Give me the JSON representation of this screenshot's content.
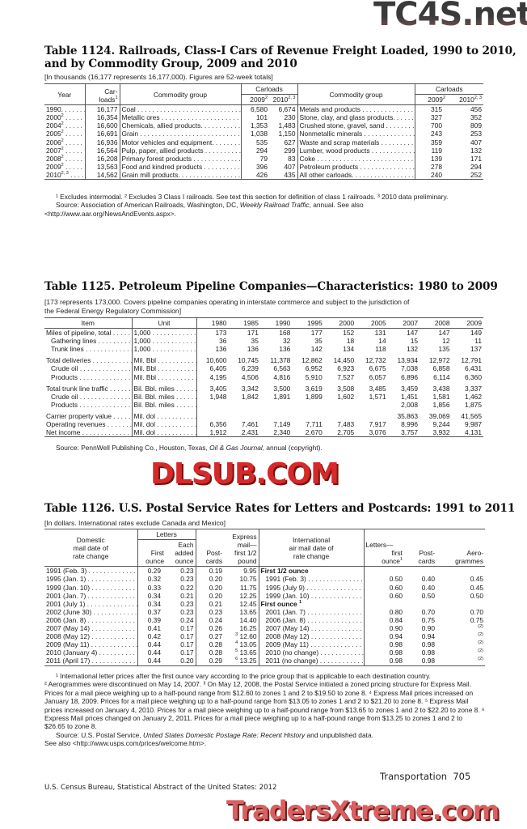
{
  "t1124": {
    "title_l1": "Table 1124. Railroads, Class-I Cars of Revenue Freight Loaded, 1990 to 2010,",
    "title_l2": "and by Commodity Group, 2009 and 2010",
    "subtitle": "[In thousands (16,177 represents 16,177,000). Figures are 52-week totals]",
    "headers": {
      "year": "Year",
      "carloads_a": "Car-",
      "carloads_b": "loads",
      "carloads_sup": "1",
      "commodity": "Commodity group",
      "carloads": "Carloads",
      "y2009": "2009",
      "y2009_sup": "2",
      "y2010": "2010",
      "y2010_sup": "2, 3"
    },
    "rows": [
      {
        "year": "1990.",
        "sup": "",
        "carloads": "16,177",
        "c1": "Coal",
        "a1": "6,580",
        "b1": "6,674",
        "c2": "Metals and products",
        "a2": "315",
        "b2": "456"
      },
      {
        "year": "2000",
        "sup": "2",
        "carloads": "16,354",
        "c1": "Metallic ores",
        "a1": "101",
        "b1": "230",
        "c2": "Stone, clay, and glass products.",
        "a2": "327",
        "b2": "352"
      },
      {
        "year": "2004",
        "sup": "2",
        "carloads": "16,600",
        "c1": "Chemicals, allied products.",
        "a1": "1,353",
        "b1": "1,483",
        "c2": "Crushed stone, gravel, sand",
        "a2": "700",
        "b2": "809"
      },
      {
        "year": "2005",
        "sup": "2",
        "carloads": "16,691",
        "c1": "Grain",
        "a1": "1,038",
        "b1": "1,150",
        "c2": "Nonmetallic minerals",
        "a2": "243",
        "b2": "253"
      },
      {
        "year": "2006",
        "sup": "2",
        "carloads": "16,936",
        "c1": "Motor vehicles and equipment.",
        "a1": "535",
        "b1": "627",
        "c2": "Waste and scrap materials",
        "a2": "359",
        "b2": "407"
      },
      {
        "year": "2007",
        "sup": "2",
        "carloads": "16,564",
        "c1": "Pulp, paper, allied products",
        "a1": "294",
        "b1": "299",
        "c2": "Lumber, wood products",
        "a2": "119",
        "b2": "132"
      },
      {
        "year": "2008",
        "sup": "2",
        "carloads": "16,208",
        "c1": "Primary forest products",
        "a1": "79",
        "b1": "83",
        "c2": "Coke",
        "a2": "139",
        "b2": "171"
      },
      {
        "year": "2009",
        "sup": "2",
        "carloads": "13,563",
        "c1": "Food and kindred products",
        "a1": "396",
        "b1": "407",
        "c2": "Petroleum products",
        "a2": "278",
        "b2": "294"
      },
      {
        "year": "2010",
        "sup": "2, 3",
        "carloads": "14,562",
        "c1": "Grain mill products.",
        "a1": "426",
        "b1": "435",
        "c2": "All other carloads.",
        "a2": "240",
        "b2": "252"
      }
    ],
    "footnote": "¹ Excludes intermodal. ² Excludes 3 Class I railroads. See text this section for definition of class 1 railroads. ³ 2010 data preliminary.",
    "source_pre": "Source: Association of American Railroads, Washington, DC, ",
    "source_ital": "Weekly Railroad Traffic",
    "source_post": ", annual. See also <http://www.aar.org/NewsAndEvents.aspx>."
  },
  "t1125": {
    "title": "Table 1125. Petroleum Pipeline Companies—Characteristics: 1980 to 2009",
    "subtitle_l1": "[173 represents 173,000. Covers pipeline companies operating in interstate commerce and subject to the jurisdiction of",
    "subtitle_l2": "the Federal Energy Regulatory Commission]",
    "headers": {
      "item": "Item",
      "unit": "Unit",
      "years": [
        "1980",
        "1985",
        "1990",
        "1995",
        "2000",
        "2005",
        "2007",
        "2008",
        "2009"
      ]
    },
    "rows": [
      {
        "item": "Miles of pipeline, total",
        "indent": false,
        "gap": false,
        "unit": "1,000",
        "v": [
          "173",
          "171",
          "168",
          "177",
          "152",
          "131",
          "147",
          "147",
          "149"
        ]
      },
      {
        "item": "Gathering lines",
        "indent": true,
        "gap": false,
        "unit": "1,000",
        "v": [
          "36",
          "35",
          "32",
          "35",
          "18",
          "14",
          "15",
          "12",
          "11"
        ]
      },
      {
        "item": "Trunk lines",
        "indent": true,
        "gap": false,
        "unit": "1,000",
        "v": [
          "136",
          "136",
          "136",
          "142",
          "134",
          "118",
          "132",
          "135",
          "137"
        ]
      },
      {
        "item": "Total deliveries",
        "indent": false,
        "gap": true,
        "unit": "Mil. Bbl",
        "v": [
          "10,600",
          "10,745",
          "11,378",
          "12,862",
          "14,450",
          "12,732",
          "13,934",
          "12,972",
          "12,791"
        ]
      },
      {
        "item": "Crude oil",
        "indent": true,
        "gap": false,
        "unit": "Mil. Bbl",
        "v": [
          "6,405",
          "6,239",
          "6,563",
          "6,952",
          "6,923",
          "6,675",
          "7,038",
          "6,858",
          "6,431"
        ]
      },
      {
        "item": "Products",
        "indent": true,
        "gap": false,
        "unit": "Mil. Bbl",
        "v": [
          "4,195",
          "4,506",
          "4,816",
          "5,910",
          "7,527",
          "6,057",
          "6,896",
          "6,114",
          "6,360"
        ]
      },
      {
        "item": "Total trunk line traffic",
        "indent": false,
        "gap": true,
        "unit": "Bil. Bbl. miles",
        "v": [
          "3,405",
          "3,342",
          "3,500",
          "3,619",
          "3,508",
          "3,485",
          "3,459",
          "3,438",
          "3,337"
        ]
      },
      {
        "item": "Crude oil",
        "indent": true,
        "gap": false,
        "unit": "Bil. Bbl. miles",
        "v": [
          "1,948",
          "1,842",
          "1,891",
          "1,899",
          "1,602",
          "1,571",
          "1,451",
          "1,581",
          "1,462"
        ]
      },
      {
        "item": "Products",
        "indent": true,
        "gap": false,
        "unit": "Bil. Bbl. miles",
        "v": [
          "",
          "",
          "",
          "",
          "",
          "",
          "2,008",
          "1,856",
          "1,875"
        ]
      },
      {
        "item": "Carrier property value",
        "indent": false,
        "gap": true,
        "unit": "Mil. dol",
        "v": [
          "",
          "",
          "",
          "",
          "",
          "",
          "35,863",
          "39,069",
          "41,565"
        ]
      },
      {
        "item": "Operating revenues",
        "indent": false,
        "gap": false,
        "unit": "Mil. dol",
        "v": [
          "6,356",
          "7,461",
          "7,149",
          "7,711",
          "7,483",
          "7,917",
          "8,996",
          "9,244",
          "9,987"
        ]
      },
      {
        "item": "Net income",
        "indent": false,
        "gap": false,
        "unit": "Mil. dol",
        "v": [
          "1,912",
          "2,431",
          "2,340",
          "2,670",
          "2,705",
          "3,076",
          "3,757",
          "3,932",
          "4,131"
        ]
      }
    ],
    "source_pre": "Source: PennWell Publishing Co., Houston, Texas, ",
    "source_ital": "Oil & Gas Journal",
    "source_post": ", annual (copyright)."
  },
  "t1126": {
    "title": "Table 1126. U.S. Postal Service Rates for Letters and Postcards: 1991 to 2011",
    "subtitle": "[In dollars. International rates exclude Canada and Mexico]",
    "headers": {
      "domestic_l1": "Domestic",
      "domestic_l2": "mail date of",
      "domestic_l3": "rate change",
      "letters": "Letters",
      "first": "First",
      "ounce": "ounce",
      "each": "Each",
      "added": "added",
      "post": "Post-",
      "cards": "cards",
      "exp_l1": "Express",
      "exp_l2": "mail—",
      "exp_l3": "first 1/2",
      "exp_l4": "pound",
      "intl_l1": "International",
      "intl_l2": "air mail date of",
      "intl_l3": "rate change",
      "ilet_l1": "Letters—",
      "ilet_l2": "first",
      "ilet_l3": "ounce",
      "ilet_sup": "1",
      "aero_l1": "Aero-",
      "aero_l2": "grammes"
    },
    "rows": [
      {
        "date": "1991 (Feb. 3)",
        "first": "0.29",
        "each": "0.23",
        "post": "0.19",
        "exp_sup": "",
        "exp": "9.95",
        "intl": "First 1/2 ounce",
        "intl_sup": "",
        "head": true,
        "il": "",
        "ip": "",
        "ia": "",
        "ia_sup": ""
      },
      {
        "date": "1995 (Jan. 1)",
        "first": "0.32",
        "each": "0.23",
        "post": "0.20",
        "exp_sup": "",
        "exp": "10.75",
        "intl": "1991 (Feb. 3)",
        "intl_sup": "",
        "head": false,
        "il": "0.50",
        "ip": "0.40",
        "ia": "0.45",
        "ia_sup": ""
      },
      {
        "date": "1999 (Jan. 10)",
        "first": "0.33",
        "each": "0.22",
        "post": "0.20",
        "exp_sup": "",
        "exp": "11.75",
        "intl": "1995 (July 9)",
        "intl_sup": "",
        "head": false,
        "il": "0.60",
        "ip": "0.40",
        "ia": "0.45",
        "ia_sup": ""
      },
      {
        "date": "2001 (Jan. 7)",
        "first": "0.34",
        "each": "0.21",
        "post": "0.20",
        "exp_sup": "",
        "exp": "12.25",
        "intl": "1999 (Jan. 10)",
        "intl_sup": "",
        "head": false,
        "il": "0.60",
        "ip": "0.50",
        "ia": "0.50",
        "ia_sup": ""
      },
      {
        "date": "2001 (July 1)",
        "first": "0.34",
        "each": "0.23",
        "post": "0.21",
        "exp_sup": "",
        "exp": "12.45",
        "intl": "First ounce",
        "intl_sup": "1",
        "head": true,
        "il": "",
        "ip": "",
        "ia": "",
        "ia_sup": ""
      },
      {
        "date": "2002 (June 30)",
        "first": "0.37",
        "each": "0.23",
        "post": "0.23",
        "exp_sup": "",
        "exp": "13.65",
        "intl": "2001 (Jan. 7)",
        "intl_sup": "",
        "head": false,
        "il": "0.80",
        "ip": "0.70",
        "ia": "0.70",
        "ia_sup": ""
      },
      {
        "date": "2006 (Jan. 8)",
        "first": "0.39",
        "each": "0.24",
        "post": "0.24",
        "exp_sup": "",
        "exp": "14.40",
        "intl": "2006 (Jan. 8)",
        "intl_sup": "",
        "head": false,
        "il": "0.84",
        "ip": "0.75",
        "ia": "0.75",
        "ia_sup": ""
      },
      {
        "date": "2007 (May 14)",
        "first": "0.41",
        "each": "0.17",
        "post": "0.26",
        "exp_sup": "",
        "exp": "16.25",
        "intl": "2007 (May 14)",
        "intl_sup": "",
        "head": false,
        "il": "0.90",
        "ip": "0.90",
        "ia": "",
        "ia_sup": "(2)"
      },
      {
        "date": "2008 (May 12)",
        "first": "0.42",
        "each": "0.17",
        "post": "0.27",
        "exp_sup": "3",
        "exp": "12.60",
        "intl": "2008 (May 12)",
        "intl_sup": "",
        "head": false,
        "il": "0.94",
        "ip": "0.94",
        "ia": "",
        "ia_sup": "(2)"
      },
      {
        "date": "2009 (May 11)",
        "first": "0.44",
        "each": "0.17",
        "post": "0.28",
        "exp_sup": "4",
        "exp": "13.05",
        "intl": "2009 (May 11)",
        "intl_sup": "",
        "head": false,
        "il": "0.98",
        "ip": "0.98",
        "ia": "",
        "ia_sup": "(2)"
      },
      {
        "date": "2010 (January 4)",
        "first": "0.44",
        "each": "0.17",
        "post": "0.28",
        "exp_sup": "5",
        "exp": "13.65",
        "intl": "2010 (no change)",
        "intl_sup": "",
        "head": false,
        "il": "0.98",
        "ip": "0.98",
        "ia": "",
        "ia_sup": "(2)"
      },
      {
        "date": "2011 (April 17)",
        "first": "0.44",
        "each": "0.20",
        "post": "0.29",
        "exp_sup": "6",
        "exp": "13.25",
        "intl": "2011 (no change)",
        "intl_sup": "",
        "head": false,
        "il": "0.98",
        "ip": "0.98",
        "ia": "",
        "ia_sup": "(2)"
      }
    ],
    "footnotes": [
      "¹ International letter prices after the first ounce vary according to the price group that is applicable to each destination country.",
      "² Aerogrammes were discontinued on May 14, 2007. ³ On May 12, 2008, the Postal Service initiated a zoned pricing structure for Express Mail. Prices for a mail piece weighing up to a half-pound range from $12.60 to zones 1 and 2 to $19.50 to zone 8. ⁴ Express Mail prices increased on January 18, 2009. Prices for a mail piece weighing up to a half-pound range from $13.05 to zones 1 and 2 to $21.20 to zone 8. ⁵ Express Mail prices increased on January 4, 2010. Prices for a mail piece weighing up to a half-pound range from $13.65 to zones 1 and 2 to $22.20 to zone 8. ⁶ Express Mail prices changed on January 2, 2011. Prices for a mail piece weighing up to a half-pound range from $13.25 to zones 1 and 2 to $26.65 to zone 8."
    ],
    "source_pre": "Source: U.S. Postal Service, ",
    "source_ital": "United States Domestic Postage Rate: Recent History",
    "source_post": " and unpublished data.",
    "see_also": "See also <http://www.usps.com/prices/welcome.htm>."
  },
  "footer": {
    "section": "Transportation",
    "page": "705",
    "publisher": "U.S. Census Bureau, Statistical Abstract of the United States: 2012"
  },
  "watermarks": {
    "top": "TC4S.net",
    "middle": "DLSUB.COM",
    "bottom": "TradersXtreme.com"
  },
  "colors": {
    "watermark_red": "#d42a2a",
    "watermark_dark": "#3a3a3a",
    "rule": "#555555"
  }
}
